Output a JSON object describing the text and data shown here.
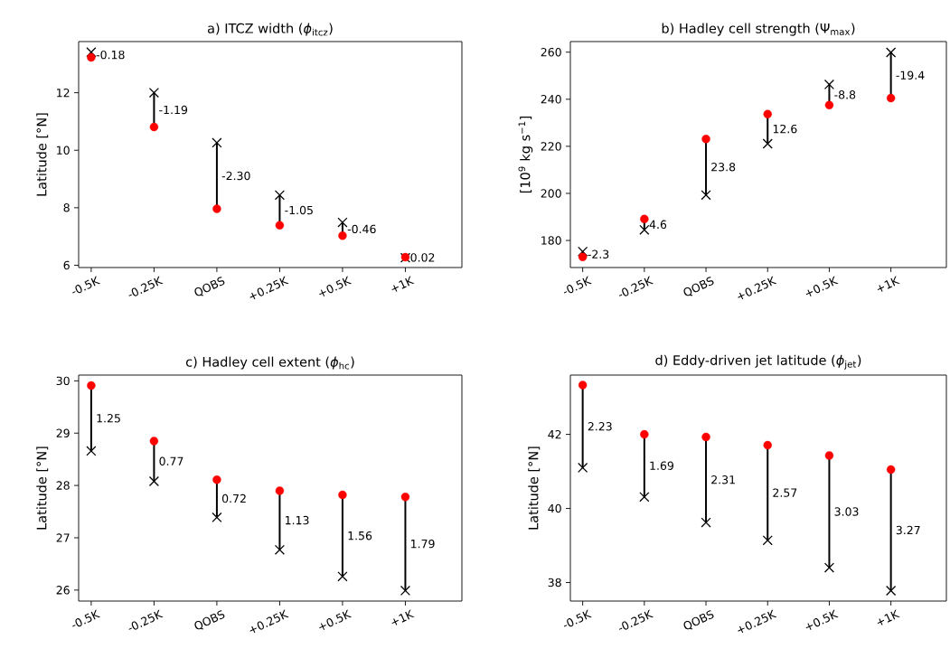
{
  "chart_data": [
    {
      "type": "scatter",
      "title": "a) ITCZ width (*ϕ*$_{itcz}$)",
      "ylabel": "Latitude [°N]",
      "grid": false,
      "categories": [
        "-0.5K",
        "-0.25K",
        "QOBS",
        "+0.25K",
        "+0.5K",
        "+1K"
      ],
      "ylim": [
        5.92,
        13.78
      ],
      "yticks": [
        6,
        8,
        10,
        12
      ],
      "series": [
        {
          "color": "#ff0000",
          "marker": "circle",
          "values": [
            13.23,
            10.81,
            7.96,
            7.39,
            7.03,
            6.28
          ]
        },
        {
          "color": "#000000",
          "marker": "cross",
          "values": [
            13.41,
            12.0,
            10.26,
            8.44,
            7.49,
            6.26
          ]
        }
      ],
      "annotations": [
        "-0.18",
        "-1.19",
        "-2.30",
        "-1.05",
        "-0.46",
        "0.02"
      ]
    },
    {
      "type": "scatter",
      "title": "b) Hadley cell strength (Ψ$_{max}$)",
      "ylabel": "[10$^{9}$ kg s$^{−1}$]",
      "grid": false,
      "categories": [
        "-0.5K",
        "-0.25K",
        "QOBS",
        "+0.25K",
        "+0.5K",
        "+1K"
      ],
      "ylim": [
        168.5,
        264.5
      ],
      "yticks": [
        180,
        200,
        220,
        240,
        260
      ],
      "series": [
        {
          "color": "#ff0000",
          "marker": "circle",
          "values": [
            173.0,
            189.1,
            223.1,
            233.7,
            237.5,
            240.5
          ]
        },
        {
          "color": "#000000",
          "marker": "cross",
          "values": [
            175.3,
            184.5,
            199.3,
            221.1,
            246.3,
            259.9
          ]
        }
      ],
      "annotations": [
        "-2.3",
        "4.6",
        "23.8",
        "12.6",
        "-8.8",
        "-19.4"
      ]
    },
    {
      "type": "scatter",
      "title": "c) Hadley cell extent (*ϕ*$_{hc}$)",
      "ylabel": "Latitude [°N]",
      "grid": false,
      "categories": [
        "-0.5K",
        "-0.25K",
        "QOBS",
        "+0.25K",
        "+0.5K",
        "+1K"
      ],
      "ylim": [
        25.79,
        30.11
      ],
      "yticks": [
        26,
        27,
        28,
        29,
        30
      ],
      "series": [
        {
          "color": "#ff0000",
          "marker": "circle",
          "values": [
            29.91,
            28.85,
            28.11,
            27.9,
            27.82,
            27.78
          ]
        },
        {
          "color": "#000000",
          "marker": "cross",
          "values": [
            28.66,
            28.08,
            27.39,
            26.77,
            26.26,
            25.99
          ]
        }
      ],
      "annotations": [
        "1.25",
        "0.77",
        "0.72",
        "1.13",
        "1.56",
        "1.79"
      ]
    },
    {
      "type": "scatter",
      "title": "d) Eddy-driven jet latitude (*ϕ*$_{jet}$)",
      "ylabel": "Latitude [°N]",
      "grid": false,
      "categories": [
        "-0.5K",
        "-0.25K",
        "QOBS",
        "+0.25K",
        "+0.5K",
        "+1K"
      ],
      "ylim": [
        37.5,
        43.6
      ],
      "yticks": [
        38,
        40,
        42
      ],
      "series": [
        {
          "color": "#ff0000",
          "marker": "circle",
          "values": [
            43.33,
            42.0,
            41.93,
            41.71,
            41.43,
            41.05
          ]
        },
        {
          "color": "#000000",
          "marker": "cross",
          "values": [
            41.1,
            40.31,
            39.62,
            39.14,
            38.4,
            37.78
          ]
        }
      ],
      "annotations": [
        "2.23",
        "1.69",
        "2.31",
        "2.57",
        "3.03",
        "3.27"
      ]
    }
  ]
}
